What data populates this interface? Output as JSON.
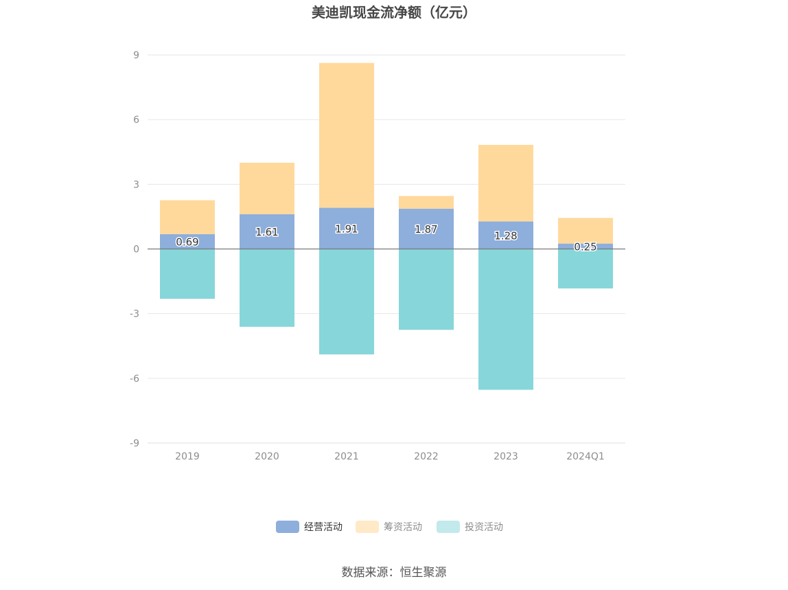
{
  "chart_data": {
    "type": "bar",
    "stacked": true,
    "title": "美迪凯现金流净额（亿元）",
    "categories": [
      "2019",
      "2020",
      "2021",
      "2022",
      "2023",
      "2024Q1"
    ],
    "series": [
      {
        "name": "经营活动",
        "color": "#8eaedb",
        "values": [
          0.69,
          1.61,
          1.91,
          1.87,
          1.28,
          0.25
        ],
        "show_labels": true
      },
      {
        "name": "筹资活动",
        "color": "#ffd99c",
        "values": [
          1.57,
          2.39,
          6.72,
          0.59,
          3.55,
          1.19
        ],
        "show_labels": false
      },
      {
        "name": "投资活动",
        "color": "#87d6da",
        "values": [
          -2.31,
          -3.61,
          -4.89,
          -3.75,
          -6.53,
          -1.83
        ],
        "show_labels": false
      }
    ],
    "ylim": [
      -9,
      9
    ],
    "yticks": [
      9,
      6,
      3,
      0,
      -3,
      -6,
      -9
    ],
    "grid": true,
    "legend_position": "bottom"
  },
  "legend": [
    {
      "label": "经营活动",
      "color": "#8eaedb",
      "active": true
    },
    {
      "label": "筹资活动",
      "color": "#ffe9c7",
      "active": false
    },
    {
      "label": "投资活动",
      "color": "#c2e9eb",
      "active": false
    }
  ],
  "source": "数据来源：恒生聚源"
}
